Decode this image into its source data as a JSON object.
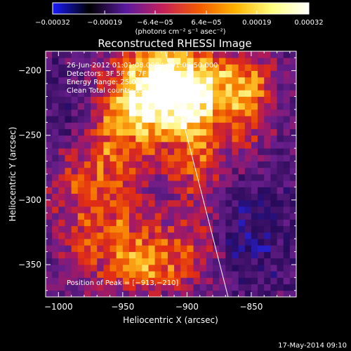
{
  "chart_data": {
    "type": "heatmap",
    "title": "Reconstructed RHESSI Image",
    "xlabel": "Heliocentric X (arcsec)",
    "ylabel": "Heliocentric Y (arcsec)",
    "xlim": [
      -1010,
      -815
    ],
    "ylim": [
      -375,
      -185
    ],
    "x_ticks": [
      -1000,
      -950,
      -900,
      -850
    ],
    "x_tick_labels": [
      "−1000",
      "−950",
      "−900",
      "−850"
    ],
    "y_ticks": [
      -200,
      -250,
      -300,
      -350
    ],
    "y_tick_labels": [
      "−200",
      "−250",
      "−300",
      "−350"
    ],
    "colorbar": {
      "vmin": -0.00032,
      "vmax": 0.00032,
      "ticks": [
        -0.00032,
        -0.00019,
        -6.4e-05,
        6.4e-05,
        0.00019,
        0.00032
      ],
      "tick_labels": [
        "−0.00032",
        "−0.00019",
        "−6.4e−05",
        "6.4e−05",
        "0.00019",
        "0.00032"
      ],
      "units": "(photons cm⁻² s⁻¹ asec⁻²)",
      "colors": [
        "#1a1aff",
        "#000000",
        "#5a1aa0",
        "#c4205a",
        "#f25a00",
        "#ffb400",
        "#ffff80",
        "#ffffff"
      ]
    },
    "annotations": [
      "26-Jun-2012 01:01:08.000 to 01:06:50.000",
      "Detectors: 3F 5F 6F 7F 8F 9F",
      "Energy Range: 25.0 - 50.0 keV",
      "Clean      Total counts: 1.21e+04",
      "Position of Peak = [−913,−210]"
    ],
    "limb_line": {
      "x": [
        -917,
        -868
      ],
      "y": [
        -185,
        -375
      ]
    },
    "peak": {
      "x": -913,
      "y": -210
    },
    "timestamp": "17-May-2014 09:10"
  }
}
